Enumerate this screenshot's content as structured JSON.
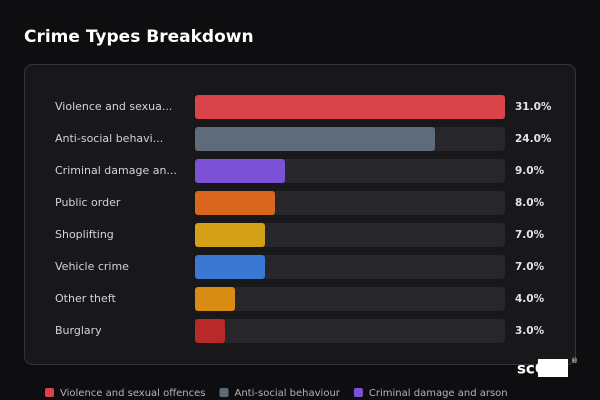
{
  "chart_data": {
    "type": "bar",
    "orientation": "horizontal",
    "title": "Crime Types Breakdown",
    "categories": [
      "Violence and sexua...",
      "Anti-social behavi...",
      "Criminal damage an...",
      "Public order",
      "Shoplifting",
      "Vehicle crime",
      "Other theft",
      "Burglary"
    ],
    "values": [
      31,
      24,
      9,
      8,
      7,
      7,
      4,
      3
    ],
    "value_labels": [
      "31.0%",
      "24.0%",
      "9.0%",
      "8.0%",
      "7.0%",
      "7.0%",
      "4.0%",
      "3.0%"
    ],
    "colors": [
      "#d9434a",
      "#5e6b7a",
      "#7b52d6",
      "#d9661f",
      "#d4a017",
      "#3a78d4",
      "#d98c14",
      "#b82a2a"
    ],
    "xlim": [
      0,
      31
    ],
    "legend": [
      {
        "name": "Violence and sexual offences",
        "color": "#d9434a"
      },
      {
        "name": "Anti-social behaviour",
        "color": "#5e6b7a"
      },
      {
        "name": "Criminal damage and arson",
        "color": "#7b52d6"
      }
    ],
    "logo": "scOS",
    "logo_mark": "®"
  }
}
